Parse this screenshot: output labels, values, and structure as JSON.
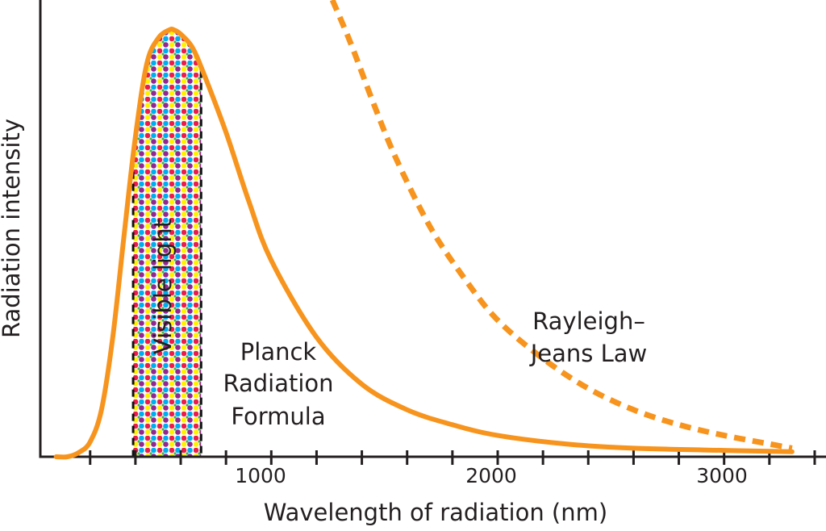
{
  "chart_data": {
    "type": "line",
    "xlabel": "Wavelength of radiation (nm)",
    "ylabel": "Radiation intensity",
    "x_ticks": [
      1000,
      2000,
      3000
    ],
    "x_tick_labels": [
      "1000",
      "2000",
      "3000"
    ],
    "xlim": [
      -20,
      3450
    ],
    "ylim": [
      0,
      1.07
    ],
    "grid": false,
    "legend": "none",
    "visible_band": {
      "label": "Visible light",
      "x": [
        390,
        690
      ]
    },
    "series": [
      {
        "style": "solid",
        "color": "#f7941d",
        "x": [
          50,
          100,
          150,
          200,
          250,
          300,
          350,
          400,
          450,
          500,
          550,
          570,
          600,
          650,
          700,
          800,
          900,
          1000,
          1200,
          1400,
          1600,
          1800,
          2000,
          2300,
          2600,
          3000,
          3300
        ],
        "y": [
          0.0,
          0.0,
          0.01,
          0.035,
          0.11,
          0.28,
          0.52,
          0.75,
          0.92,
          0.98,
          1.0,
          1.0,
          0.99,
          0.96,
          0.9,
          0.76,
          0.6,
          0.46,
          0.28,
          0.17,
          0.11,
          0.075,
          0.05,
          0.03,
          0.02,
          0.015,
          0.012
        ]
      },
      {
        "style": "dashed",
        "color": "#f7941d",
        "x": [
          1270,
          1350,
          1450,
          1550,
          1700,
          1850,
          2000,
          2200,
          2400,
          2600,
          2800,
          3000,
          3200,
          3300
        ],
        "y": [
          1.07,
          0.97,
          0.83,
          0.7,
          0.54,
          0.42,
          0.32,
          0.23,
          0.16,
          0.11,
          0.075,
          0.05,
          0.03,
          0.02
        ]
      }
    ],
    "annotations": [
      {
        "lines": [
          "Planck",
          "Radiation",
          "Formula"
        ]
      },
      {
        "lines": [
          "Rayleigh–",
          "Jeans Law"
        ]
      }
    ]
  }
}
